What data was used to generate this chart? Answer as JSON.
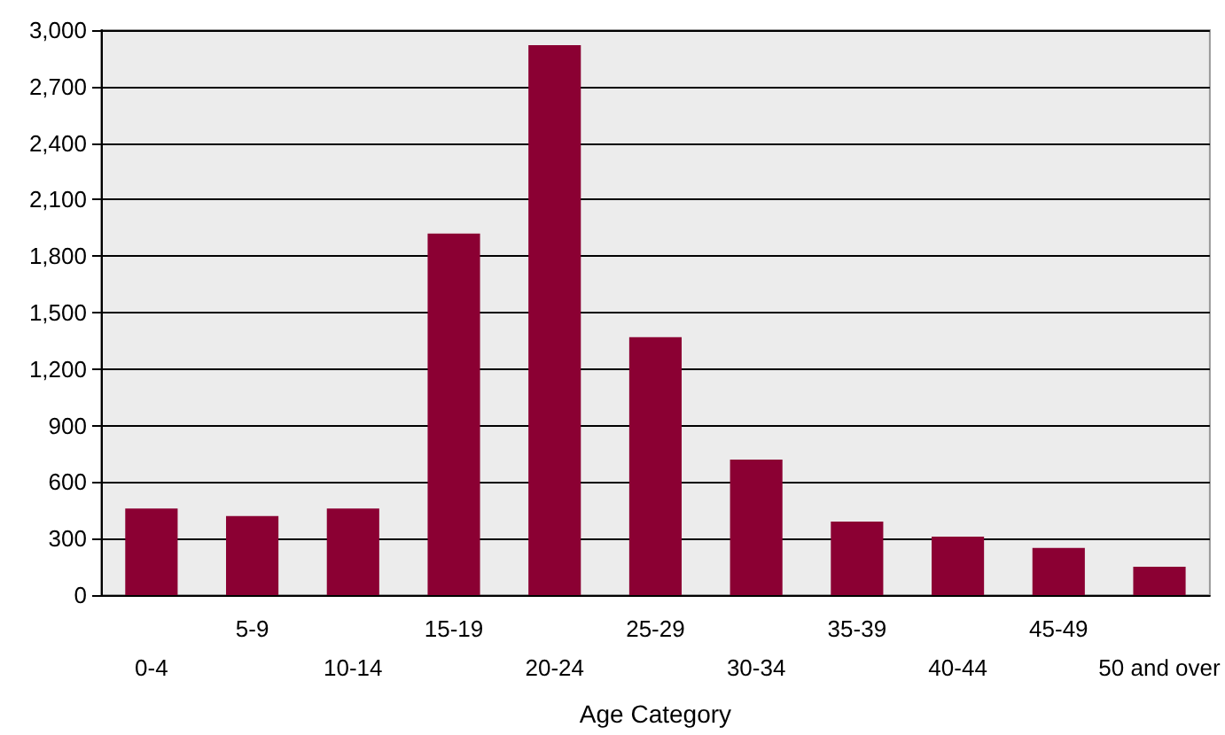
{
  "chart_data": {
    "type": "bar",
    "xlabel": "Age Category",
    "categories": [
      "0-4",
      "5-9",
      "10-14",
      "15-19",
      "20-24",
      "25-29",
      "30-34",
      "35-39",
      "40-44",
      "45-49",
      "50 and over"
    ],
    "values": [
      460,
      420,
      460,
      1920,
      2920,
      1370,
      720,
      390,
      310,
      250,
      150
    ],
    "color": "#8b0033",
    "ylim": [
      0,
      3000
    ],
    "yticks": [
      0,
      300,
      600,
      900,
      {
        "value": 1200,
        "label": "1,200"
      },
      {
        "value": 1500,
        "label": "1,500"
      },
      {
        "value": 1800,
        "label": "1,800"
      },
      {
        "value": 2100,
        "label": "2,100"
      },
      {
        "value": 2400,
        "label": "2,400"
      },
      {
        "value": 2700,
        "label": "2,700"
      },
      {
        "value": 3000,
        "label": "3,000"
      }
    ],
    "grid": "y"
  }
}
